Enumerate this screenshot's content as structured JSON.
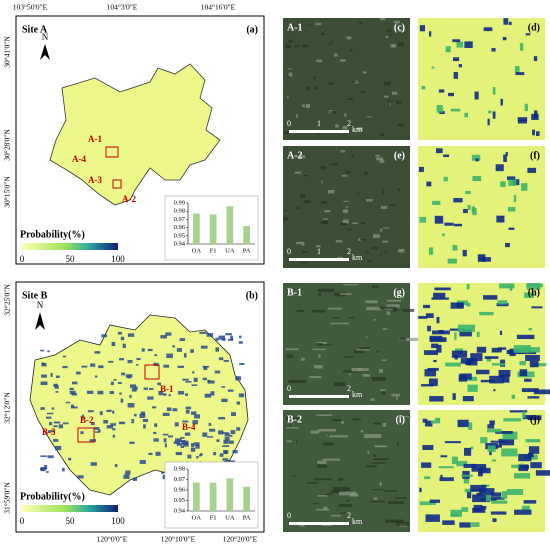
{
  "site_a": {
    "title": "Site A",
    "panel": "(a)",
    "lon_labels": [
      "103°50'0\"E",
      "104°3'0\"E",
      "104°16'0\"E"
    ],
    "lat_labels": [
      "30°41'0\"N",
      "30°28'0\"N",
      "30°15'0\"N"
    ],
    "sites": [
      "A-1",
      "A-2",
      "A-3",
      "A-4"
    ],
    "colorbar": {
      "label": "Probability(%)",
      "ticks": [
        0,
        50,
        100
      ]
    },
    "chart": {
      "type": "bar",
      "categories": [
        "OA",
        "F1",
        "UA",
        "PA"
      ],
      "values": [
        0.977,
        0.976,
        0.986,
        0.962
      ],
      "color": "#a9d18e",
      "ylim": [
        0.94,
        0.99
      ],
      "yticks": [
        0.94,
        0.95,
        0.96,
        0.97,
        0.98,
        0.99
      ]
    }
  },
  "site_b": {
    "title": "Site B",
    "panel": "(b)",
    "lon_labels": [
      "120°0'0\"E",
      "120°10'0\"E",
      "120°20'0\"E"
    ],
    "lat_labels": [
      "32°25'0\"N",
      "32°12'0\"N",
      "31°59'0\"N"
    ],
    "sites": [
      "B-1",
      "B-2",
      "B-3",
      "B-4"
    ],
    "colorbar": {
      "label": "Probability(%)",
      "ticks": [
        0,
        50,
        100
      ]
    },
    "chart": {
      "type": "bar",
      "categories": [
        "OA",
        "F1",
        "UA",
        "PA"
      ],
      "values": [
        0.967,
        0.967,
        0.971,
        0.963
      ],
      "color": "#a9d18e",
      "ylim": [
        0.94,
        0.98
      ],
      "yticks": [
        0.94,
        0.95,
        0.96,
        0.97,
        0.98
      ]
    }
  },
  "tiles": [
    {
      "site": "A-1",
      "image_panel": "(c)",
      "map_panel": "(d)",
      "scale": [
        0,
        1,
        2
      ],
      "unit": "km"
    },
    {
      "site": "A-2",
      "image_panel": "(e)",
      "map_panel": "(f)",
      "scale": [
        0,
        1,
        2
      ],
      "unit": "km"
    },
    {
      "site": "B-1",
      "image_panel": "(g)",
      "map_panel": "(h)",
      "scale": [
        0,
        2
      ],
      "unit": "km"
    },
    {
      "site": "B-2",
      "image_panel": "(i)",
      "map_panel": "(j)",
      "scale": [
        0,
        2
      ],
      "unit": "km"
    }
  ]
}
